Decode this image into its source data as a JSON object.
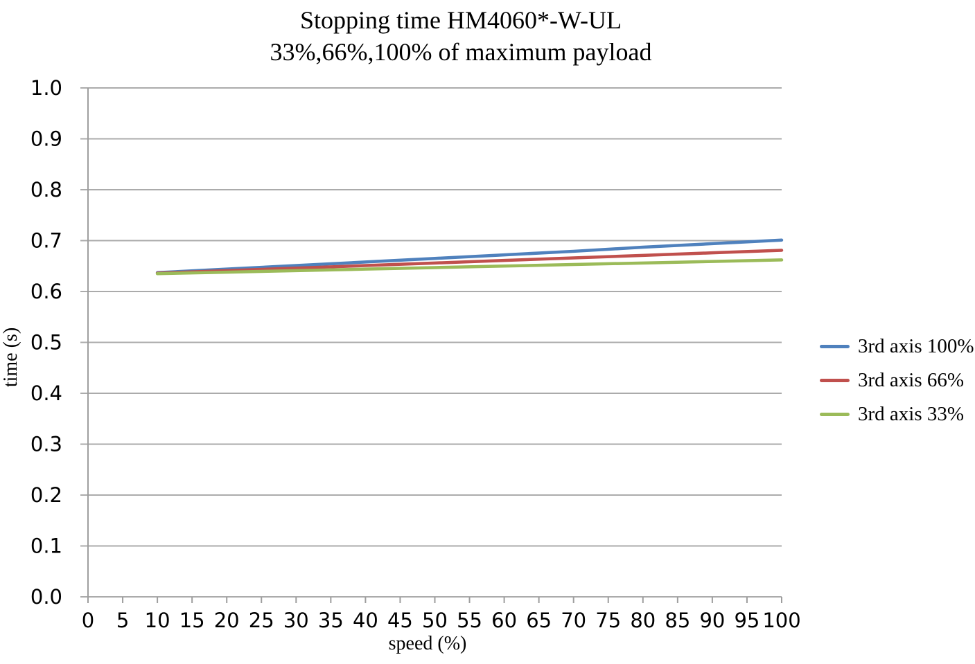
{
  "title": {
    "line1": "Stopping time HM4060*-W-UL",
    "line2": "33%,66%,100% of maximum payload"
  },
  "legend": {
    "items": [
      {
        "label": "3rd axis 100%",
        "color": "#4F81BD"
      },
      {
        "label": "3rd axis 66%",
        "color": "#C0504D"
      },
      {
        "label": "3rd axis 33%",
        "color": "#9BBB59"
      }
    ]
  },
  "chart_data": {
    "type": "line",
    "title": "Stopping time HM4060*-W-UL",
    "subtitle": "33%,66%,100% of maximum payload",
    "xlabel": "speed (%)",
    "ylabel": "time (s)",
    "xlim": [
      0,
      100
    ],
    "ylim": [
      0.0,
      1.0
    ],
    "x_ticks": [
      0,
      5,
      10,
      15,
      20,
      25,
      30,
      35,
      40,
      45,
      50,
      55,
      60,
      65,
      70,
      75,
      80,
      85,
      90,
      95,
      100
    ],
    "y_ticks": [
      "0.0",
      "0.1",
      "0.2",
      "0.3",
      "0.4",
      "0.5",
      "0.6",
      "0.7",
      "0.8",
      "0.9",
      "1.0"
    ],
    "grid": "horizontal",
    "legend_position": "right",
    "x": [
      10,
      20,
      30,
      40,
      50,
      60,
      70,
      80,
      90,
      100
    ],
    "series": [
      {
        "name": "3rd axis 100%",
        "color": "#4F81BD",
        "values": [
          0.637,
          0.644,
          0.651,
          0.658,
          0.665,
          0.672,
          0.679,
          0.687,
          0.694,
          0.701
        ]
      },
      {
        "name": "3rd axis 66%",
        "color": "#C0504D",
        "values": [
          0.636,
          0.641,
          0.646,
          0.651,
          0.656,
          0.661,
          0.666,
          0.671,
          0.676,
          0.681
        ]
      },
      {
        "name": "3rd axis 33%",
        "color": "#9BBB59",
        "values": [
          0.635,
          0.638,
          0.641,
          0.644,
          0.647,
          0.65,
          0.653,
          0.656,
          0.659,
          0.662
        ]
      }
    ]
  },
  "colors": {
    "gridline": "#ABABAB",
    "axis": "#9E9E9E",
    "text": "#000000",
    "background": "#FFFFFF"
  }
}
